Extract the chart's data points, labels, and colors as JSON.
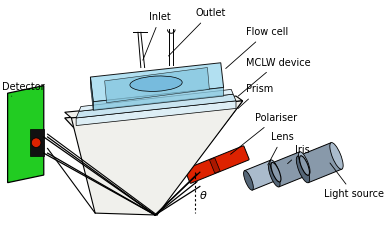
{
  "labels": {
    "inlet": "Inlet",
    "outlet": "Outlet",
    "flow_cell": "Flow cell",
    "mclw": "MCLW device",
    "prism": "Prism",
    "polariser": "Polariser",
    "lens": "Lens",
    "iris": "Iris",
    "light_source": "Light source",
    "detector": "Detector",
    "theta": "θ"
  },
  "colors": {
    "green": "#22cc22",
    "green_dark": "#119911",
    "green_side": "#119911",
    "light_blue": "#aaddf0",
    "light_blue2": "#c5e8f5",
    "blue_mid": "#88c8e0",
    "blue_dark": "#66aac8",
    "red": "#dd2200",
    "red_dark": "#aa1800",
    "gray": "#8899aa",
    "gray_light": "#aabbcc",
    "gray_dark": "#6677aa",
    "white": "#ffffff",
    "black": "#000000",
    "prism_white": "#f0f0ec",
    "prism_gray": "#d8d8d0",
    "glass1": "#ddeef5",
    "glass2": "#c8e4f0",
    "glass_edge": "#9bbece"
  },
  "figsize": [
    3.92,
    2.34
  ],
  "dpi": 100
}
